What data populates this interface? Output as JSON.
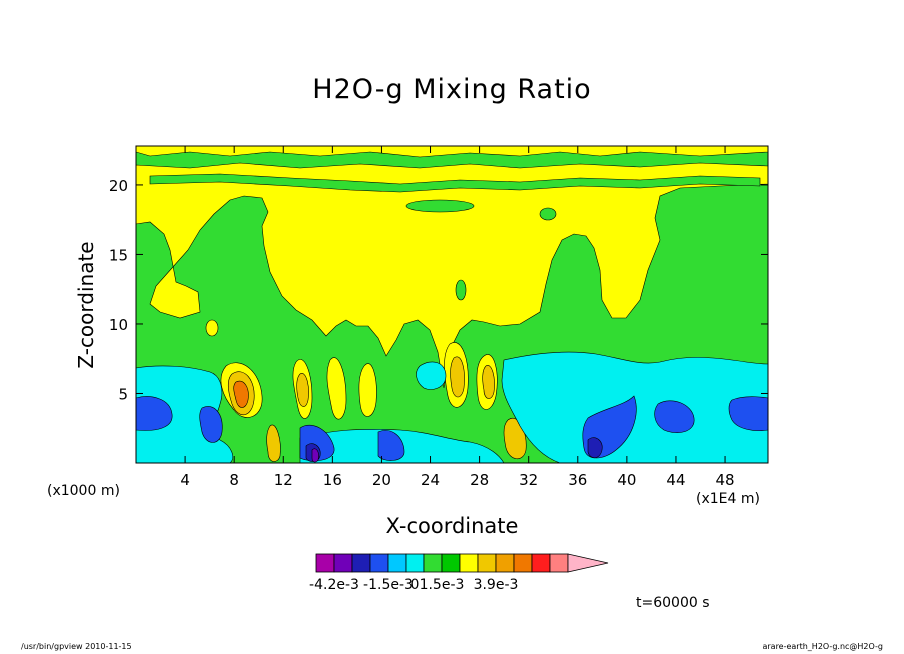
{
  "chart_data": {
    "type": "heatmap",
    "title": "H2O-g Mixing Ratio",
    "xlabel": "X-coordinate",
    "ylabel": "Z-coordinate",
    "x_unit": "(x1000 m)",
    "x_scale": "(x1E4 m)",
    "xlim": [
      0,
      51.5
    ],
    "ylim": [
      0,
      22.8
    ],
    "x_ticks": [
      4,
      8,
      12,
      16,
      20,
      24,
      28,
      32,
      36,
      40,
      44,
      48
    ],
    "y_ticks": [
      5,
      10,
      15,
      20
    ],
    "levels_colors": [
      "#a800a8",
      "#7000b8",
      "#1e1eb4",
      "#1e50f0",
      "#00c8ff",
      "#00f0f0",
      "#32dc32",
      "#00c800",
      "#ffff00",
      "#f0c800",
      "#f0a000",
      "#f07800",
      "#ff1e1e",
      "#ff8080",
      "#ffb4c8"
    ],
    "colorbar_labels": [
      "-4.2e-3",
      "-1.5e-3",
      "0",
      "1.5e-3",
      "3.9e-3"
    ],
    "time_label": "t=60000 s"
  },
  "footer": {
    "left": "/usr/bin/gpview  2010-11-15",
    "right": "arare-earth_H2O-g.nc@H2O-g"
  }
}
